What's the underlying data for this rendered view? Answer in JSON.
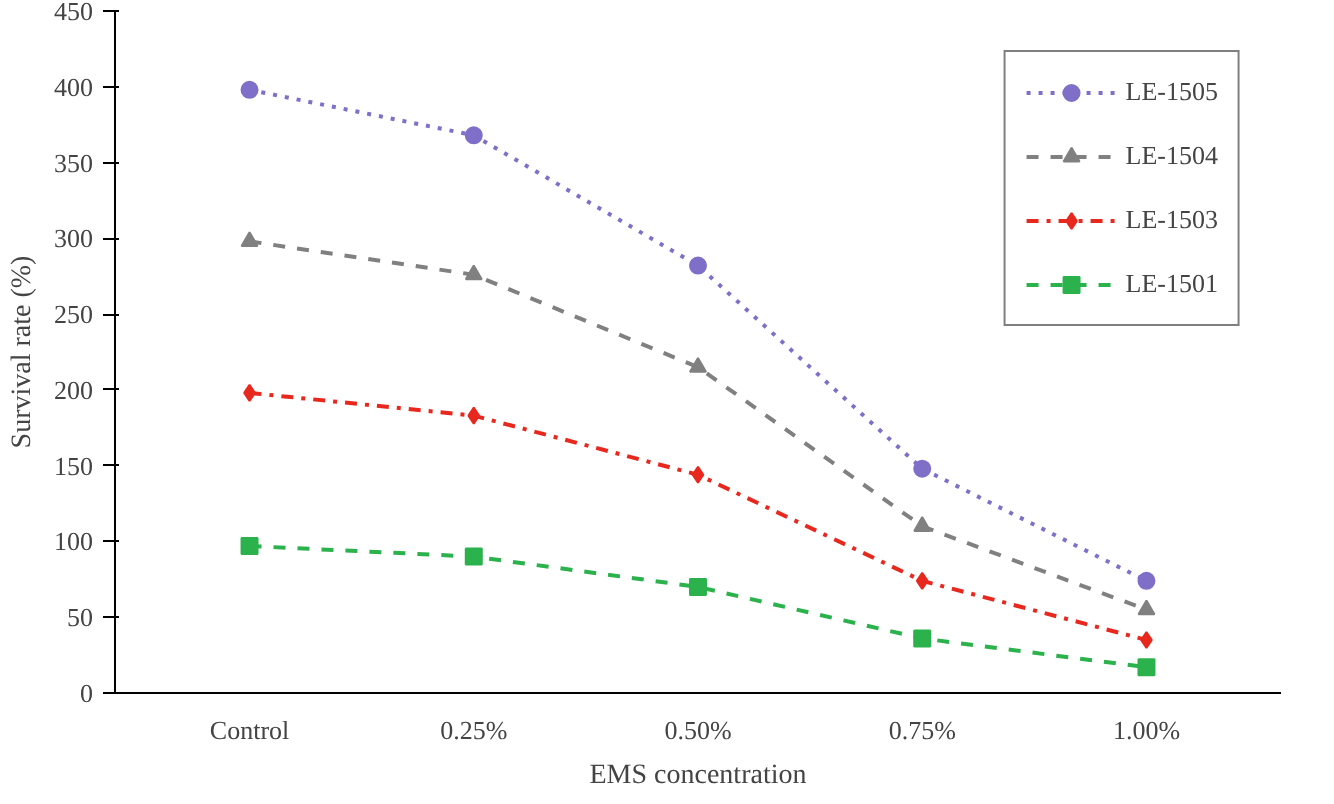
{
  "chart_data": {
    "type": "line",
    "xlabel": "EMS concentration",
    "ylabel": "Survival rate (%)",
    "categories": [
      "Control",
      "0.25%",
      "0.50%",
      "0.75%",
      "1.00%"
    ],
    "ylim": [
      0,
      450
    ],
    "yticks": [
      0,
      50,
      100,
      150,
      200,
      250,
      300,
      350,
      400,
      450
    ],
    "grid": false,
    "legend": "top right",
    "series": [
      {
        "name": "LE-1505",
        "color": "#7f6fc8",
        "marker": "circle",
        "line_style": "dotted",
        "values": [
          398,
          368,
          282,
          148,
          74
        ]
      },
      {
        "name": "LE-1504",
        "color": "#808080",
        "marker": "triangle",
        "line_style": "dashed",
        "values": [
          298,
          276,
          215,
          110,
          55
        ]
      },
      {
        "name": "LE-1503",
        "color": "#e8281e",
        "marker": "diamond",
        "line_style": "dashdot",
        "values": [
          198,
          183,
          144,
          74,
          35
        ]
      },
      {
        "name": "LE-1501",
        "color": "#2bb24c",
        "marker": "square",
        "line_style": "dashed",
        "values": [
          97,
          90,
          70,
          36,
          17
        ]
      }
    ]
  }
}
